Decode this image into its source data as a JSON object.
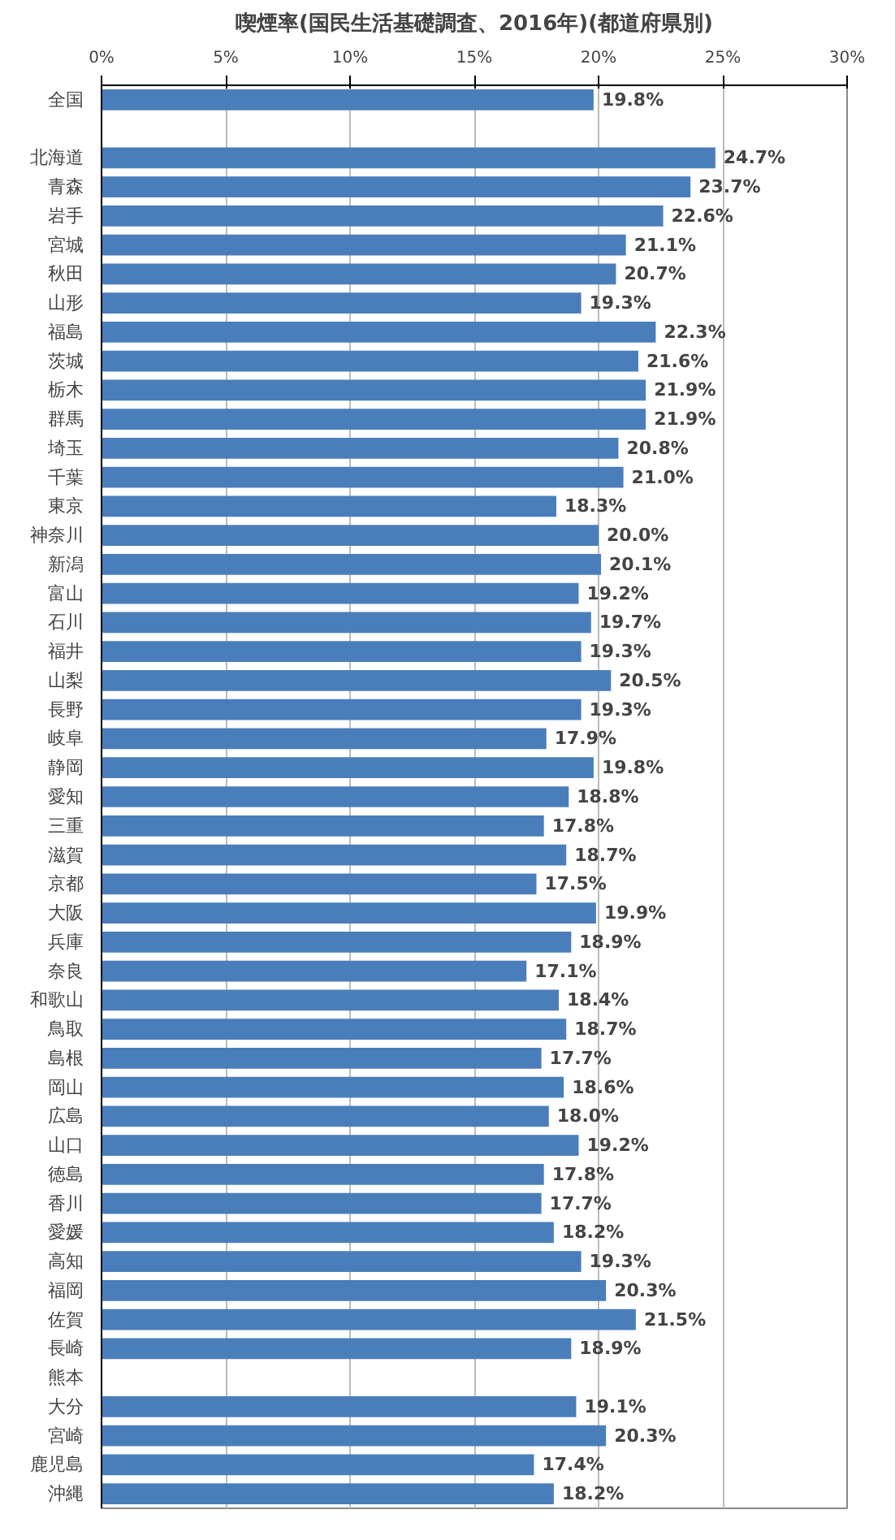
{
  "chart_data": {
    "type": "bar",
    "orientation": "horizontal",
    "title": "喫煙率(国民生活基礎調査、2016年)(都道府県別)",
    "categories": [
      "全国",
      null,
      "北海道",
      "青森",
      "岩手",
      "宮城",
      "秋田",
      "山形",
      "福島",
      "茨城",
      "栃木",
      "群馬",
      "埼玉",
      "千葉",
      "東京",
      "神奈川",
      "新潟",
      "富山",
      "石川",
      "福井",
      "山梨",
      "長野",
      "岐阜",
      "静岡",
      "愛知",
      "三重",
      "滋賀",
      "京都",
      "大阪",
      "兵庫",
      "奈良",
      "和歌山",
      "鳥取",
      "島根",
      "岡山",
      "広島",
      "山口",
      "徳島",
      "香川",
      "愛媛",
      "高知",
      "福岡",
      "佐賀",
      "長崎",
      "熊本",
      "大分",
      "宮崎",
      "鹿児島",
      "沖縄"
    ],
    "values": [
      19.8,
      null,
      24.7,
      23.7,
      22.6,
      21.1,
      20.7,
      19.3,
      22.3,
      21.6,
      21.9,
      21.9,
      20.8,
      21.0,
      18.3,
      20.0,
      20.1,
      19.2,
      19.7,
      19.3,
      20.5,
      19.3,
      17.9,
      19.8,
      18.8,
      17.8,
      18.7,
      17.5,
      19.9,
      18.9,
      17.1,
      18.4,
      18.7,
      17.7,
      18.6,
      18.0,
      19.2,
      17.8,
      17.7,
      18.2,
      19.3,
      20.3,
      21.5,
      18.9,
      null,
      19.1,
      20.3,
      17.4,
      18.2
    ],
    "value_labels": [
      "19.8%",
      null,
      "24.7%",
      "23.7%",
      "22.6%",
      "21.1%",
      "20.7%",
      "19.3%",
      "22.3%",
      "21.6%",
      "21.9%",
      "21.9%",
      "20.8%",
      "21.0%",
      "18.3%",
      "20.0%",
      "20.1%",
      "19.2%",
      "19.7%",
      "19.3%",
      "20.5%",
      "19.3%",
      "17.9%",
      "19.8%",
      "18.8%",
      "17.8%",
      "18.7%",
      "17.5%",
      "19.9%",
      "18.9%",
      "17.1%",
      "18.4%",
      "18.7%",
      "17.7%",
      "18.6%",
      "18.0%",
      "19.2%",
      "17.8%",
      "17.7%",
      "18.2%",
      "19.3%",
      "20.3%",
      "21.5%",
      "18.9%",
      null,
      "19.1%",
      "20.3%",
      "17.4%",
      "18.2%"
    ],
    "color": "#4a7ebb",
    "xlim": [
      0,
      30
    ],
    "xticks": [
      {
        "value": 0,
        "label": "0%"
      },
      {
        "value": 5,
        "label": "5%"
      },
      {
        "value": 10,
        "label": "10%"
      },
      {
        "value": 15,
        "label": "15%"
      },
      {
        "value": 20,
        "label": "20%"
      },
      {
        "value": 25,
        "label": "25%"
      },
      {
        "value": 30,
        "label": "30%"
      }
    ],
    "grid": "x"
  }
}
